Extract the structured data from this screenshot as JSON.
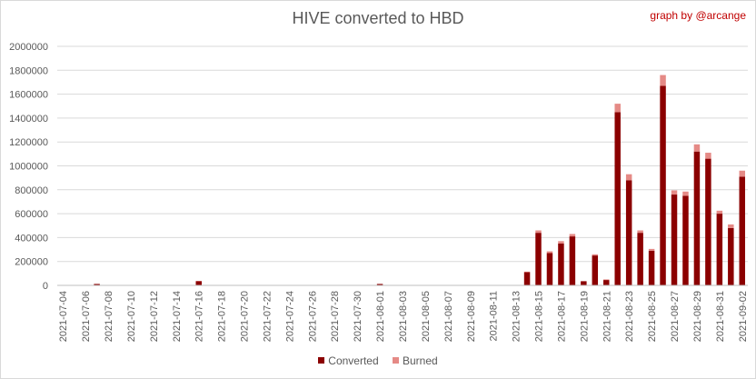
{
  "chart_data": {
    "type": "bar",
    "stacked": true,
    "title": "HIVE converted to HBD",
    "credit": "graph by @arcange",
    "xlabel": "",
    "ylabel": "",
    "ylim": [
      0,
      2000000
    ],
    "yticks": [
      0,
      200000,
      400000,
      600000,
      800000,
      1000000,
      1200000,
      1400000,
      1600000,
      1800000,
      2000000
    ],
    "ytick_labels": [
      "0",
      "200000",
      "400000",
      "600000",
      "800000",
      "1000000",
      "1200000",
      "1400000",
      "1600000",
      "1800000",
      "2000000"
    ],
    "grid": true,
    "legend_position": "bottom",
    "x_tick_labels": [
      "2021-07-04",
      "2021-07-06",
      "2021-07-08",
      "2021-07-10",
      "2021-07-12",
      "2021-07-14",
      "2021-07-16",
      "2021-07-18",
      "2021-07-20",
      "2021-07-22",
      "2021-07-24",
      "2021-07-26",
      "2021-07-28",
      "2021-07-30",
      "2021-08-01",
      "2021-08-03",
      "2021-08-05",
      "2021-08-07",
      "2021-08-09",
      "2021-08-11",
      "2021-08-13",
      "2021-08-15",
      "2021-08-17",
      "2021-08-19",
      "2021-08-21",
      "2021-08-23",
      "2021-08-25",
      "2021-08-27",
      "2021-08-29",
      "2021-08-31",
      "2021-09-02"
    ],
    "categories": [
      "2021-07-04",
      "2021-07-05",
      "2021-07-06",
      "2021-07-07",
      "2021-07-08",
      "2021-07-09",
      "2021-07-10",
      "2021-07-11",
      "2021-07-12",
      "2021-07-13",
      "2021-07-14",
      "2021-07-15",
      "2021-07-16",
      "2021-07-17",
      "2021-07-18",
      "2021-07-19",
      "2021-07-20",
      "2021-07-21",
      "2021-07-22",
      "2021-07-23",
      "2021-07-24",
      "2021-07-25",
      "2021-07-26",
      "2021-07-27",
      "2021-07-28",
      "2021-07-29",
      "2021-07-30",
      "2021-07-31",
      "2021-08-01",
      "2021-08-02",
      "2021-08-03",
      "2021-08-04",
      "2021-08-05",
      "2021-08-06",
      "2021-08-07",
      "2021-08-08",
      "2021-08-09",
      "2021-08-10",
      "2021-08-11",
      "2021-08-12",
      "2021-08-13",
      "2021-08-14",
      "2021-08-15",
      "2021-08-16",
      "2021-08-17",
      "2021-08-18",
      "2021-08-19",
      "2021-08-20",
      "2021-08-21",
      "2021-08-22",
      "2021-08-23",
      "2021-08-24",
      "2021-08-25",
      "2021-08-26",
      "2021-08-27",
      "2021-08-28",
      "2021-08-29",
      "2021-08-30",
      "2021-08-31",
      "2021-09-01",
      "2021-09-02"
    ],
    "series": [
      {
        "name": "Converted",
        "color": "#8b0000",
        "values": [
          3000,
          3000,
          3000,
          12000,
          3000,
          3000,
          3000,
          3000,
          3000,
          3000,
          3000,
          3000,
          35000,
          3000,
          3000,
          3000,
          3000,
          3000,
          3000,
          3000,
          3000,
          3000,
          3000,
          3000,
          3000,
          3000,
          3000,
          3000,
          12000,
          3000,
          3000,
          3000,
          3000,
          3000,
          3000,
          3000,
          3000,
          3000,
          3000,
          3000,
          3000,
          110000,
          440000,
          270000,
          350000,
          410000,
          35000,
          250000,
          45000,
          1450000,
          880000,
          440000,
          290000,
          1670000,
          760000,
          750000,
          1120000,
          1060000,
          600000,
          480000,
          910000
        ]
      },
      {
        "name": "Burned",
        "color": "#e58a86",
        "values": [
          0,
          0,
          0,
          0,
          0,
          0,
          0,
          0,
          0,
          0,
          0,
          0,
          3000,
          0,
          0,
          0,
          0,
          0,
          0,
          0,
          0,
          0,
          0,
          0,
          0,
          0,
          0,
          0,
          0,
          0,
          0,
          0,
          0,
          0,
          0,
          0,
          0,
          0,
          0,
          0,
          0,
          5000,
          20000,
          15000,
          20000,
          20000,
          0,
          10000,
          5000,
          70000,
          50000,
          20000,
          15000,
          90000,
          35000,
          35000,
          60000,
          50000,
          25000,
          30000,
          50000
        ]
      }
    ]
  }
}
